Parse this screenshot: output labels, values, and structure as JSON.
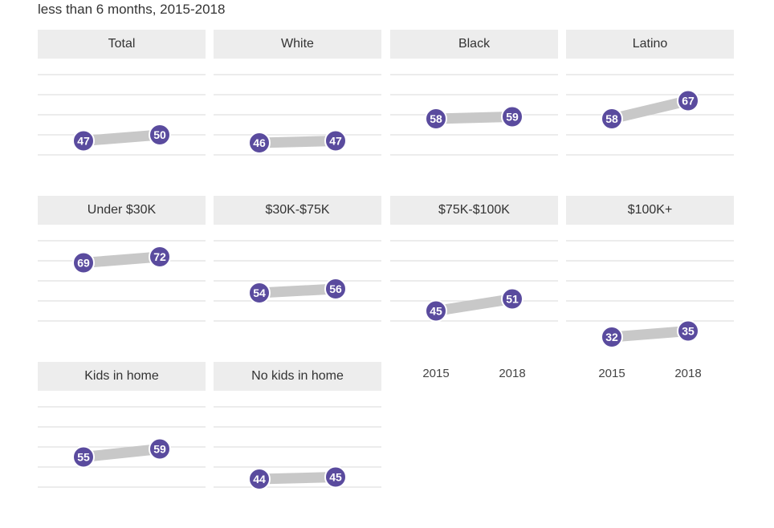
{
  "subtitle": "less than 6 months, 2015-2018",
  "colors": {
    "dot": "#5a4b9e",
    "connector": "#c8c8c8",
    "gridline": "#e0e0e0",
    "header_bg": "#ededed"
  },
  "chart_data": [
    {
      "type": "dot-plot",
      "title": "Total",
      "categories": [
        "2015",
        "2018"
      ],
      "values": [
        47,
        50
      ]
    },
    {
      "type": "dot-plot",
      "title": "White",
      "categories": [
        "2015",
        "2018"
      ],
      "values": [
        46,
        47
      ]
    },
    {
      "type": "dot-plot",
      "title": "Black",
      "categories": [
        "2015",
        "2018"
      ],
      "values": [
        58,
        59
      ]
    },
    {
      "type": "dot-plot",
      "title": "Latino",
      "categories": [
        "2015",
        "2018"
      ],
      "values": [
        58,
        67
      ]
    },
    {
      "type": "dot-plot",
      "title": "Under $30K",
      "categories": [
        "2015",
        "2018"
      ],
      "values": [
        69,
        72
      ]
    },
    {
      "type": "dot-plot",
      "title": "$30K-$75K",
      "categories": [
        "2015",
        "2018"
      ],
      "values": [
        54,
        56
      ]
    },
    {
      "type": "dot-plot",
      "title": "$75K-$100K",
      "categories": [
        "2015",
        "2018"
      ],
      "values": [
        45,
        51
      ]
    },
    {
      "type": "dot-plot",
      "title": "$100K+",
      "categories": [
        "2015",
        "2018"
      ],
      "values": [
        32,
        35
      ]
    },
    {
      "type": "dot-plot",
      "title": "Kids in home",
      "categories": [
        "2015",
        "2018"
      ],
      "values": [
        55,
        59
      ]
    },
    {
      "type": "dot-plot",
      "title": "No kids in home",
      "categories": [
        "2015",
        "2018"
      ],
      "values": [
        44,
        45
      ]
    }
  ]
}
